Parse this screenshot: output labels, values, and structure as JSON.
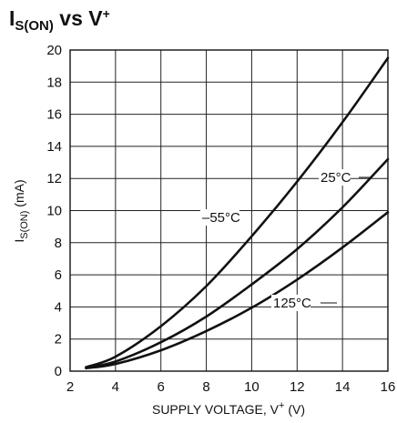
{
  "chart_data": {
    "type": "line",
    "title_main": "I",
    "title_sub": "S(ON)",
    "title_rest": " vs V",
    "title_sup": "+",
    "xlabel_main": "SUPPLY VOLTAGE, V",
    "xlabel_sup": "+",
    "xlabel_rest": " (V)",
    "ylabel_main": "I",
    "ylabel_sub": "S(ON)",
    "ylabel_rest": " (mA)",
    "xlim": [
      2,
      16
    ],
    "ylim": [
      0,
      20
    ],
    "x_ticks": [
      "2",
      "4",
      "6",
      "8",
      "10",
      "12",
      "14",
      "16"
    ],
    "y_ticks": [
      "0",
      "2",
      "4",
      "6",
      "8",
      "10",
      "12",
      "14",
      "16",
      "18",
      "20"
    ],
    "grid": true,
    "series": [
      {
        "name": "–55°C",
        "x": [
          2.7,
          4,
          6,
          8,
          10,
          12,
          14,
          16
        ],
        "y": [
          0.25,
          0.9,
          2.8,
          5.3,
          8.4,
          11.8,
          15.5,
          19.5
        ]
      },
      {
        "name": "25°C",
        "x": [
          2.7,
          4,
          6,
          8,
          10,
          12,
          14,
          16
        ],
        "y": [
          0.2,
          0.6,
          1.8,
          3.4,
          5.4,
          7.6,
          10.2,
          13.2
        ]
      },
      {
        "name": "125°C",
        "x": [
          2.7,
          4,
          6,
          8,
          10,
          12,
          14,
          16
        ],
        "y": [
          0.18,
          0.45,
          1.3,
          2.5,
          3.95,
          5.7,
          7.7,
          9.9
        ]
      }
    ]
  }
}
